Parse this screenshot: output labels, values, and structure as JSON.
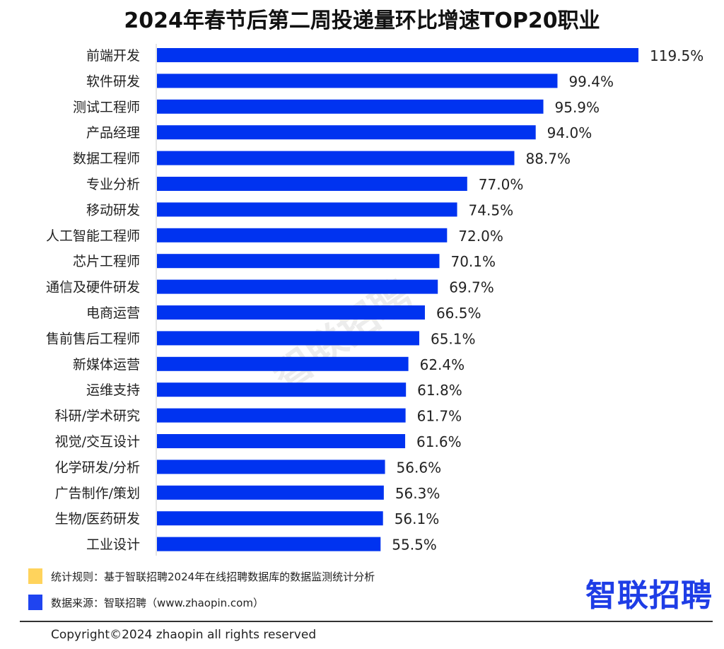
{
  "chart_data": {
    "type": "bar",
    "orientation": "horizontal",
    "title": "2024年春节后第二周投递量环比增速TOP20职业",
    "categories": [
      "前端开发",
      "软件研发",
      "测试工程师",
      "产品经理",
      "数据工程师",
      "专业分析",
      "移动研发",
      "人工智能工程师",
      "芯片工程师",
      "通信及硬件研发",
      "电商运营",
      "售前售后工程师",
      "新媒体运营",
      "运维支持",
      "科研/学术研究",
      "视觉/交互设计",
      "化学研发/分析",
      "广告制作/策划",
      "生物/医药研发",
      "工业设计"
    ],
    "values": [
      119.5,
      99.4,
      95.9,
      94.0,
      88.7,
      77.0,
      74.5,
      72.0,
      70.1,
      69.7,
      66.5,
      65.1,
      62.4,
      61.8,
      61.7,
      61.6,
      56.6,
      56.3,
      56.1,
      55.5
    ],
    "value_labels": [
      "119.5%",
      "99.4%",
      "95.9%",
      "94.0%",
      "88.7%",
      "77.0%",
      "74.5%",
      "72.0%",
      "70.1%",
      "69.7%",
      "66.5%",
      "65.1%",
      "62.4%",
      "61.8%",
      "61.7%",
      "61.6%",
      "56.6%",
      "56.3%",
      "56.1%",
      "55.5%"
    ],
    "unit": "%",
    "xlim": [
      0,
      120
    ],
    "grid": false,
    "bar_color": "#0033f0"
  },
  "watermark": "智联招聘",
  "legend": [
    {
      "text": "统计规则：基于智联招聘2024年在线招聘数据库的数据监测统计分析",
      "color": "#ffd35c"
    },
    {
      "text": "数据来源：智联招聘（www.zhaopin.com）",
      "color": "#1f44f0"
    }
  ],
  "logo": "智联招聘",
  "copyright": "Copyright©2024 zhaopin all rights reserved"
}
